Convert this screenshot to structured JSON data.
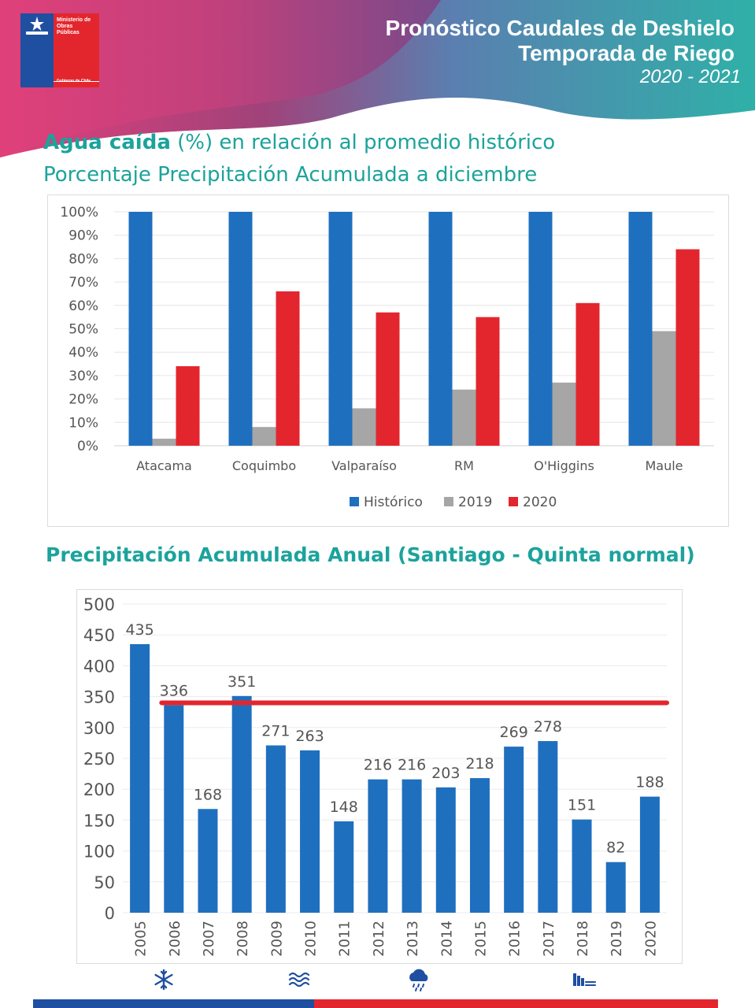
{
  "header": {
    "title_line1": "Pronóstico Caudales de Deshielo",
    "title_line2": "Temporada de Riego",
    "season": "2020 - 2021",
    "logo": {
      "ministry_line1": "Ministerio de",
      "ministry_line2": "Obras",
      "ministry_line3": "Públicas",
      "government": "Gobierno de Chile"
    }
  },
  "section1": {
    "title_bold": "Agua caída",
    "title_rest": " (%) en relación al promedio histórico",
    "subtitle": "Porcentaje Precipitación Acumulada a diciembre"
  },
  "section2": {
    "title": "Precipitación Acumulada Anual (Santiago - Quinta normal)"
  },
  "colors": {
    "teal": "#1ba39c",
    "blue": "#1f6fbf",
    "gray": "#a6a6a6",
    "red": "#e3262e"
  },
  "chart_data": [
    {
      "type": "bar",
      "title": "Porcentaje Precipitación Acumulada a diciembre",
      "categories": [
        "Atacama",
        "Coquimbo",
        "Valparaíso",
        "RM",
        "O'Higgins",
        "Maule"
      ],
      "series": [
        {
          "name": "Histórico",
          "color": "#1f6fbf",
          "values": [
            100,
            100,
            100,
            100,
            100,
            100
          ]
        },
        {
          "name": "2019",
          "color": "#a6a6a6",
          "values": [
            3,
            8,
            16,
            24,
            27,
            49
          ]
        },
        {
          "name": "2020",
          "color": "#e3262e",
          "values": [
            34,
            66,
            57,
            55,
            61,
            84
          ]
        }
      ],
      "ylim": [
        0,
        100
      ],
      "yticks": [
        "0%",
        "10%",
        "20%",
        "30%",
        "40%",
        "50%",
        "60%",
        "70%",
        "80%",
        "90%",
        "100%"
      ],
      "legend": "bottom",
      "grid": true
    },
    {
      "type": "bar",
      "title": "Precipitación Acumulada Anual (Santiago - Quinta normal)",
      "categories": [
        "2005",
        "2006",
        "2007",
        "2008",
        "2009",
        "2010",
        "2011",
        "2012",
        "2013",
        "2014",
        "2015",
        "2016",
        "2017",
        "2018",
        "2019",
        "2020"
      ],
      "values": [
        435,
        336,
        168,
        351,
        271,
        263,
        148,
        216,
        216,
        203,
        218,
        269,
        278,
        151,
        82,
        188
      ],
      "reference_line": {
        "value": 340,
        "color": "#e3262e",
        "from_category": "2006"
      },
      "ylim": [
        0,
        500
      ],
      "yticks": [
        "0",
        "50",
        "100",
        "150",
        "200",
        "250",
        "300",
        "350",
        "400",
        "450",
        "500"
      ],
      "grid": true
    }
  ],
  "icons": [
    "snowflake-icon",
    "water-waves-icon",
    "rain-cloud-icon",
    "dam-icon"
  ]
}
